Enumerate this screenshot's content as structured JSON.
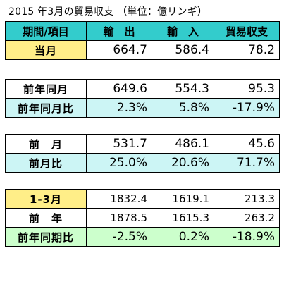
{
  "title": "2015 年3月の貿易収支 （単位：億リンギ）",
  "header": {
    "item": "期間/項目",
    "export": "輸　出",
    "import": "輸　入",
    "balance": "貿易収支"
  },
  "rows": [
    {
      "label": "当月",
      "export": "664.7",
      "import": "586.4",
      "balance": "78.2"
    },
    {
      "label": "前年同月",
      "export": "649.6",
      "import": "554.3",
      "balance": "95.3"
    },
    {
      "label": "前年同月比",
      "export": "2.3%",
      "import": "5.8%",
      "balance": "-17.9%"
    },
    {
      "label": "前　月",
      "export": "531.7",
      "import": "486.1",
      "balance": "45.6"
    },
    {
      "label": "前月比",
      "export": "25.0%",
      "import": "20.6%",
      "balance": "71.7%"
    },
    {
      "label": "1-3月",
      "export": "1832.4",
      "import": "1619.1",
      "balance": "213.3"
    },
    {
      "label": "前　年",
      "export": "1878.5",
      "import": "1615.3",
      "balance": "263.2"
    },
    {
      "label": "前年同期比",
      "export": "-2.5%",
      "import": "0.2%",
      "balance": "-18.9%"
    }
  ],
  "colors": {
    "header": "#33cccc",
    "yellow": "#ffee88",
    "cyan": "#ccf5f5",
    "green": "#ccffcc"
  }
}
